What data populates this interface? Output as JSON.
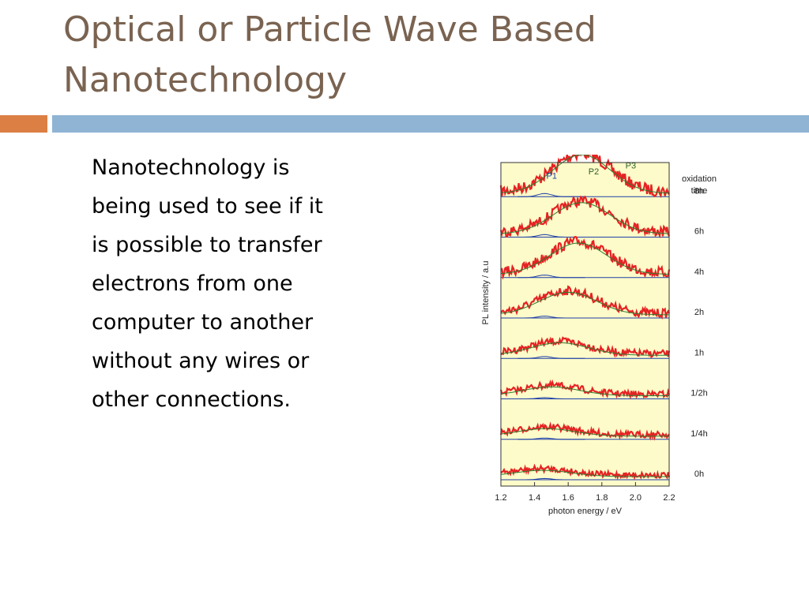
{
  "slide": {
    "title_lines": [
      "Optical or Particle Wave Based",
      "Nanotechnology"
    ],
    "body_lines": [
      "Nanotechnology is",
      "being used to see if it",
      "is possible to transfer",
      "electrons from one",
      "computer to another",
      "without any wires or",
      "other connections."
    ],
    "colors": {
      "title": "#7a6351",
      "accent_bar": "#dc7f45",
      "main_bar": "#8fb4d4"
    }
  },
  "chart_data": {
    "type": "line",
    "xlabel": "photon energy / eV",
    "ylabel": "PL intensity / a.u",
    "x_ticks": [
      "1.2",
      "1.4",
      "1.6",
      "1.8",
      "2.0",
      "2.2"
    ],
    "xlim": [
      1.2,
      2.2
    ],
    "legend_title": [
      "oxidation",
      "time"
    ],
    "peak_labels": [
      "P1",
      "P2",
      "P3"
    ],
    "series": [
      {
        "name": "8h",
        "amplitude": 0.62,
        "center": 1.68,
        "p1_amplitude": 0.05
      },
      {
        "name": "6h",
        "amplitude": 0.5,
        "center": 1.68,
        "p1_amplitude": 0.04
      },
      {
        "name": "4h",
        "amplitude": 0.5,
        "center": 1.66,
        "p1_amplitude": 0.04
      },
      {
        "name": "2h",
        "amplitude": 0.36,
        "center": 1.6,
        "p1_amplitude": 0.03
      },
      {
        "name": "1h",
        "amplitude": 0.2,
        "center": 1.55,
        "p1_amplitude": 0.03
      },
      {
        "name": "1/2h",
        "amplitude": 0.14,
        "center": 1.5,
        "p1_amplitude": 0.02
      },
      {
        "name": "1/4h",
        "amplitude": 0.12,
        "center": 1.47,
        "p1_amplitude": 0.02
      },
      {
        "name": "0h",
        "amplitude": 0.1,
        "center": 1.45,
        "p1_amplitude": 0.02
      }
    ],
    "colors": {
      "background": "#fdfbc9",
      "data": "#e52222",
      "fit_total": "#2e7d32",
      "fit_p1": "#1f3fa8"
    }
  }
}
